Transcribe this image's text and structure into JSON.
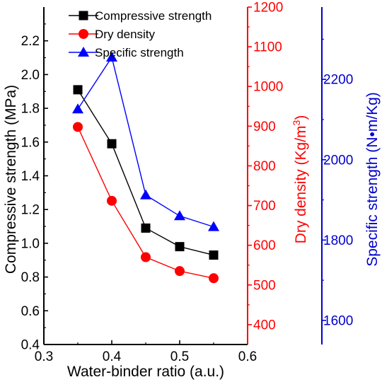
{
  "chart_data": {
    "type": "line",
    "title": "",
    "xlabel": "Water-binder ratio (a.u.)",
    "xlim": [
      0.3,
      0.6
    ],
    "x_ticks": [
      "0.3",
      "0.4",
      "0.5",
      "0.6"
    ],
    "x_tick_values": [
      0.3,
      0.4,
      0.5,
      0.6
    ],
    "grid": false,
    "legend_position": "top-left",
    "axes": {
      "left": {
        "label": "Compressive strength (MPa)",
        "ylim": [
          0.4,
          2.4
        ],
        "ticks": [
          "0.4",
          "0.6",
          "0.8",
          "1.0",
          "1.2",
          "1.4",
          "1.6",
          "1.8",
          "2.0",
          "2.2"
        ],
        "tick_values": [
          0.4,
          0.6,
          0.8,
          1.0,
          1.2,
          1.4,
          1.6,
          1.8,
          2.0,
          2.2
        ],
        "color": "#000000"
      },
      "right1": {
        "label": "Dry density (Kg/m",
        "label_sup": "3",
        "label_end": ")",
        "ylim": [
          350,
          1200
        ],
        "ticks": [
          "400",
          "500",
          "600",
          "700",
          "800",
          "900",
          "1000",
          "1100",
          "1200"
        ],
        "tick_values": [
          400,
          500,
          600,
          700,
          800,
          900,
          1000,
          1100,
          1200
        ],
        "color": "#ff0000"
      },
      "right2": {
        "label": "Specific strength (N•m/Kg)",
        "ylim": [
          1540,
          2380
        ],
        "ticks": [
          "1600",
          "1800",
          "2000",
          "2200"
        ],
        "tick_values": [
          1600,
          1800,
          2000,
          2200
        ],
        "color": "#0000cc"
      }
    },
    "x": [
      0.35,
      0.4,
      0.45,
      0.5,
      0.55
    ],
    "series": [
      {
        "name": "Compressive strength",
        "axis": "left",
        "color": "#000000",
        "marker": "square",
        "values": [
          1.91,
          1.59,
          1.09,
          0.98,
          0.93
        ]
      },
      {
        "name": "Dry density",
        "axis": "right1",
        "color": "#ff0000",
        "marker": "circle",
        "values": [
          898,
          712,
          570,
          535,
          517
        ]
      },
      {
        "name": "Specific strength",
        "axis": "right2",
        "color": "#0000ff",
        "marker": "triangle",
        "values": [
          2126,
          2255,
          1912,
          1860,
          1833
        ]
      }
    ]
  }
}
